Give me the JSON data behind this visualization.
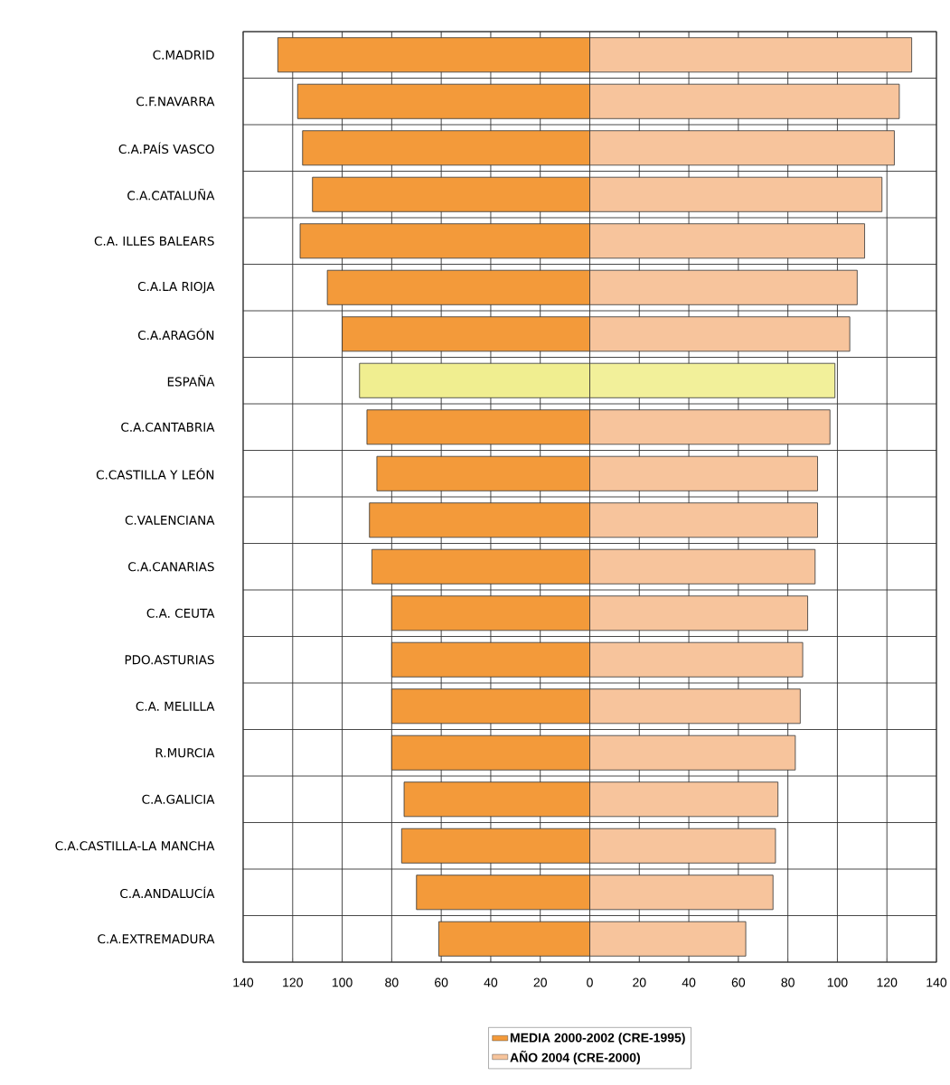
{
  "chart_data": {
    "type": "bar",
    "orientation": "horizontal",
    "categories": [
      "C.MADRID",
      "C.F.NAVARRA",
      "C.A.PAÍS VASCO",
      "C.A.CATALUÑA",
      "C.A. ILLES BALEARS",
      "C.A.LA RIOJA",
      "C.A.ARAGÓN",
      "ESPAÑA",
      "C.A.CANTABRIA",
      "C.CASTILLA Y LEÓN",
      "C.VALENCIANA",
      "C.A.CANARIAS",
      "C.A. CEUTA",
      "PDO.ASTURIAS",
      "C.A. MELILLA",
      "R.MURCIA",
      "C.A.GALICIA",
      "C.A.CASTILLA-LA MANCHA",
      "C.A.ANDALUCÍA",
      "C.A.EXTREMADURA"
    ],
    "series": [
      {
        "name": "MEDIA 2000-2002 (CRE-1995)",
        "color": "#f39a3a",
        "colors": [
          "#f39a3a",
          "#f39a3a",
          "#f39a3a",
          "#f39a3a",
          "#f39a3a",
          "#f39a3a",
          "#f39a3a",
          "#f0ee90",
          "#f39a3a",
          "#f39a3a",
          "#f39a3a",
          "#f39a3a",
          "#f39a3a",
          "#f39a3a",
          "#f39a3a",
          "#f39a3a",
          "#f39a3a",
          "#f39a3a",
          "#f39a3a",
          "#f39a3a"
        ],
        "values": [
          -126,
          -118,
          -116,
          -112,
          -117,
          -106,
          -100,
          -93,
          -90,
          -86,
          -89,
          -88,
          -80,
          -80,
          -80,
          -80,
          -75,
          -76,
          -70,
          -61
        ]
      },
      {
        "name": "AÑO 2004 (CRE-2000)",
        "color": "#f7c49c",
        "colors": [
          "#f7c49c",
          "#f7c49c",
          "#f7c49c",
          "#f7c49c",
          "#f7c49c",
          "#f7c49c",
          "#f7c49c",
          "#f2f09a",
          "#f7c49c",
          "#f7c49c",
          "#f7c49c",
          "#f7c49c",
          "#f7c49c",
          "#f7c49c",
          "#f7c49c",
          "#f7c49c",
          "#f7c49c",
          "#f7c49c",
          "#f7c49c",
          "#f7c49c"
        ],
        "values": [
          130,
          125,
          123,
          118,
          111,
          108,
          105,
          99,
          97,
          92,
          92,
          91,
          88,
          86,
          85,
          83,
          76,
          75,
          74,
          63
        ]
      }
    ],
    "xlim": [
      -140,
      140
    ],
    "xticks": [
      {
        "value": -140,
        "label": "140"
      },
      {
        "value": -120,
        "label": "120"
      },
      {
        "value": -100,
        "label": "100"
      },
      {
        "value": -80,
        "label": "80"
      },
      {
        "value": -60,
        "label": "60"
      },
      {
        "value": -40,
        "label": "40"
      },
      {
        "value": -20,
        "label": "20"
      },
      0,
      20,
      40,
      60,
      80,
      100,
      120,
      140
    ],
    "stacked": true,
    "grid": true,
    "legend": "bottom"
  }
}
